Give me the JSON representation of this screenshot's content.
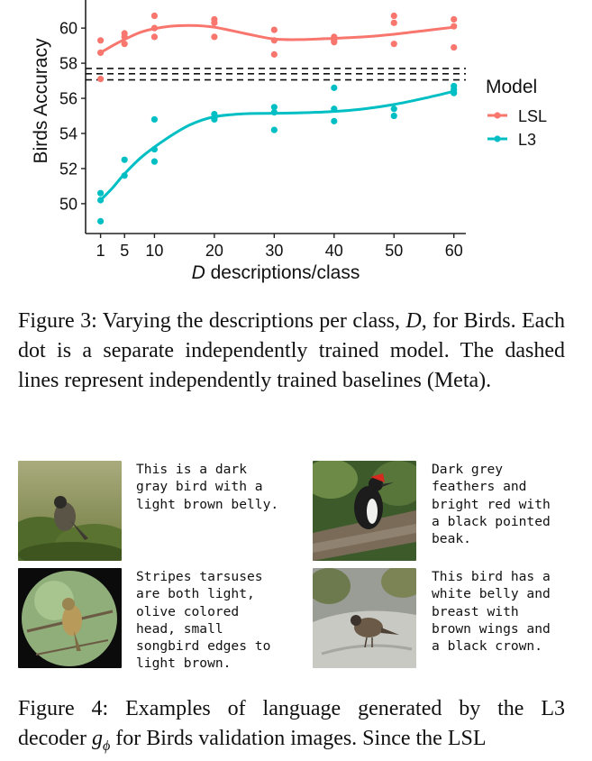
{
  "chart_data": {
    "type": "scatter",
    "title": "",
    "xlabel_var": "D",
    "xlabel_rest": " descriptions/class",
    "ylabel": "Birds Accuracy",
    "x_ticks": [
      1,
      5,
      10,
      20,
      30,
      40,
      50,
      60
    ],
    "y_ticks": [
      50,
      52,
      54,
      56,
      58,
      60
    ],
    "xlim": [
      -1.5,
      62
    ],
    "ylim": [
      48.3,
      61.6
    ],
    "legend_title": "Model",
    "legend_position": "right",
    "baselines_dashed": [
      57.05,
      57.4,
      57.7
    ],
    "series": [
      {
        "name": "LSL",
        "color": "#F8766D",
        "points": [
          [
            1,
            59.3
          ],
          [
            1,
            58.6
          ],
          [
            1,
            57.1
          ],
          [
            5,
            59.7
          ],
          [
            5,
            59.5
          ],
          [
            5,
            59.1
          ],
          [
            10,
            60.7
          ],
          [
            10,
            60.0
          ],
          [
            10,
            59.5
          ],
          [
            20,
            60.5
          ],
          [
            20,
            60.3
          ],
          [
            20,
            59.5
          ],
          [
            30,
            59.9
          ],
          [
            30,
            59.3
          ],
          [
            30,
            58.5
          ],
          [
            40,
            59.5
          ],
          [
            40,
            59.3
          ],
          [
            40,
            59.2
          ],
          [
            50,
            60.7
          ],
          [
            50,
            60.3
          ],
          [
            50,
            59.1
          ],
          [
            60,
            60.5
          ],
          [
            60,
            60.1
          ],
          [
            60,
            58.9
          ]
        ],
        "smooth": [
          [
            1,
            58.6
          ],
          [
            3,
            59.0
          ],
          [
            5,
            59.35
          ],
          [
            8,
            59.8
          ],
          [
            12,
            60.08
          ],
          [
            16,
            60.15
          ],
          [
            20,
            60.05
          ],
          [
            25,
            59.7
          ],
          [
            30,
            59.38
          ],
          [
            35,
            59.35
          ],
          [
            40,
            59.42
          ],
          [
            45,
            59.5
          ],
          [
            50,
            59.65
          ],
          [
            55,
            59.85
          ],
          [
            60,
            60.05
          ]
        ]
      },
      {
        "name": "L3",
        "color": "#00BFC4",
        "points": [
          [
            1,
            50.6
          ],
          [
            1,
            50.2
          ],
          [
            1,
            49.0
          ],
          [
            5,
            52.5
          ],
          [
            5,
            51.6
          ],
          [
            10,
            54.8
          ],
          [
            10,
            53.1
          ],
          [
            10,
            52.4
          ],
          [
            20,
            55.1
          ],
          [
            20,
            54.9
          ],
          [
            20,
            54.8
          ],
          [
            30,
            55.5
          ],
          [
            30,
            55.2
          ],
          [
            30,
            54.2
          ],
          [
            40,
            56.6
          ],
          [
            40,
            55.4
          ],
          [
            40,
            54.7
          ],
          [
            50,
            55.4
          ],
          [
            50,
            55.0
          ],
          [
            60,
            56.7
          ],
          [
            60,
            56.5
          ],
          [
            60,
            56.3
          ]
        ],
        "smooth": [
          [
            1,
            50.2
          ],
          [
            3,
            50.9
          ],
          [
            5,
            51.7
          ],
          [
            8,
            52.7
          ],
          [
            12,
            53.7
          ],
          [
            16,
            54.5
          ],
          [
            20,
            54.95
          ],
          [
            25,
            55.12
          ],
          [
            30,
            55.15
          ],
          [
            35,
            55.18
          ],
          [
            40,
            55.25
          ],
          [
            45,
            55.4
          ],
          [
            50,
            55.65
          ],
          [
            55,
            56.0
          ],
          [
            60,
            56.4
          ]
        ]
      }
    ]
  },
  "figure3": {
    "label": "Figure 3:",
    "text_before_var": "  Varying the descriptions per class,",
    "var": "D",
    "text_after_var": ", for Birds.  Each dot is a separate independently trained model.  The dashed lines represent independently trained baselines (Meta)."
  },
  "examples": [
    {
      "text": "This is a dark\ngray bird with a\nlight brown belly.",
      "scene": "sparrow-on-shrub"
    },
    {
      "text": "Dark grey\nfeathers and\nbright red with\na black pointed\nbeak.",
      "scene": "woodpecker-on-log"
    },
    {
      "text": "Stripes tarsuses\nare both light,\nolive colored\nhead, small\nsongbird edges to\nlight brown.",
      "scene": "sparrow-on-branch-circle"
    },
    {
      "text": "This bird has a\nwhite belly and\nbreast with\nbrown wings and\na black crown.",
      "scene": "bird-on-rock"
    }
  ],
  "figure4": {
    "label": "Figure 4:",
    "text_before_var": "  Examples of language generated by the L3 decoder",
    "var": "g",
    "var_sub": "ϕ",
    "text_after_var": " for Birds validation images. Since the LSL"
  }
}
